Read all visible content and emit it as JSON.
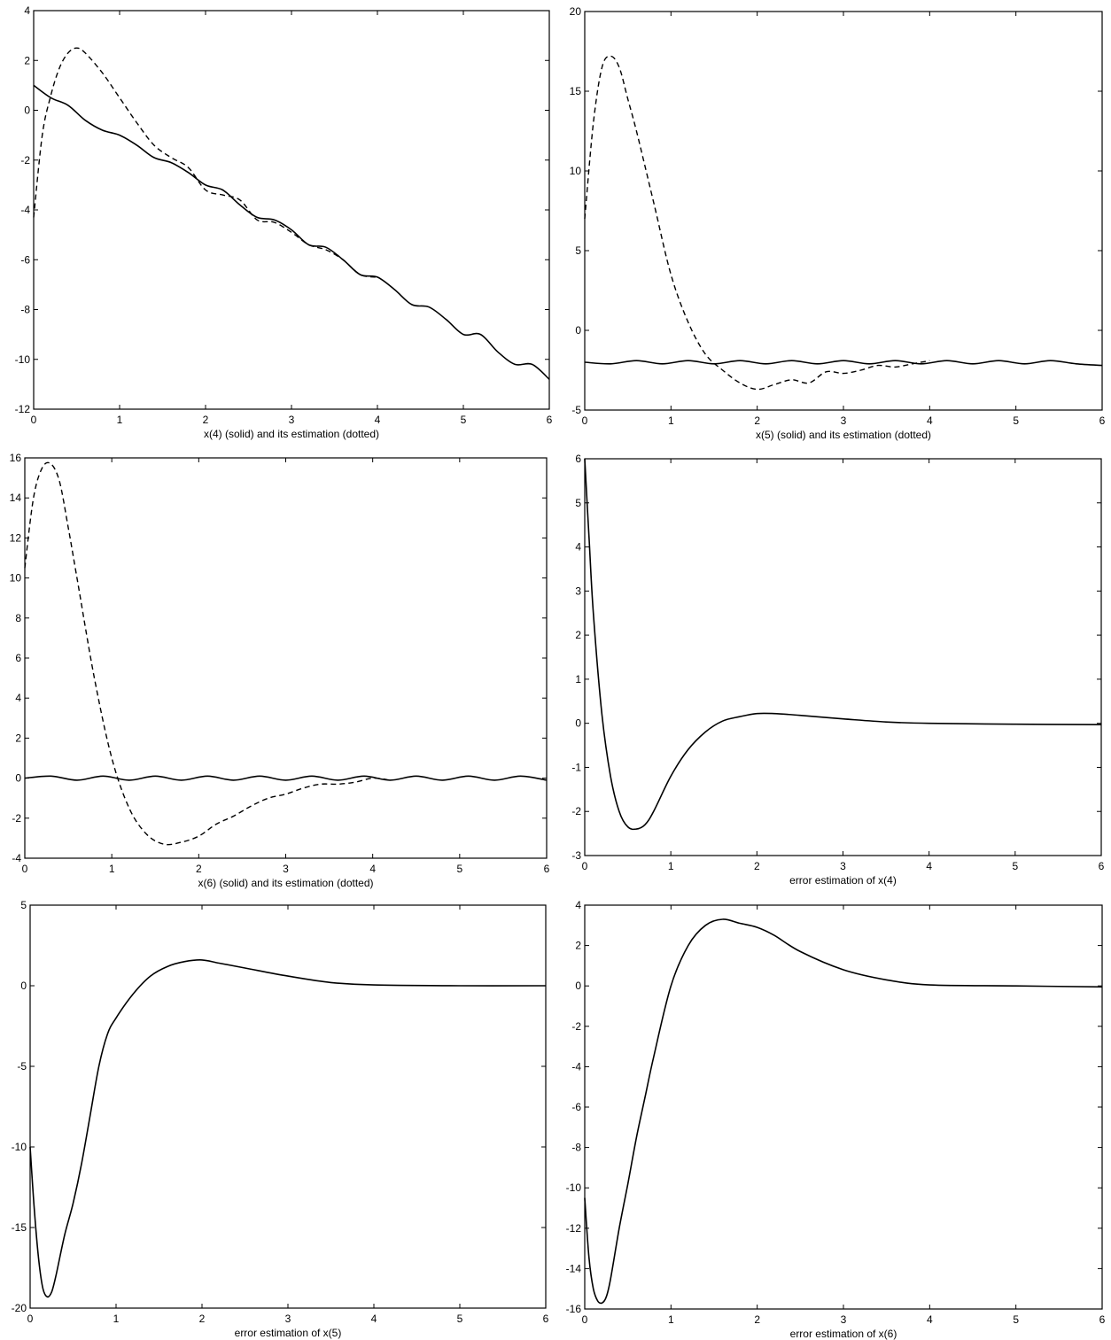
{
  "figure": {
    "background": "#ffffff",
    "ink": "#000000"
  },
  "chart_data": [
    {
      "type": "line",
      "xlabel": "x(4) (solid) and its estimation (dotted)",
      "xlim": [
        0,
        6
      ],
      "ylim": [
        -12,
        4
      ],
      "xticks": [
        0,
        1,
        2,
        3,
        4,
        5,
        6
      ],
      "yticks": [
        -12,
        -10,
        -8,
        -6,
        -4,
        -2,
        0,
        2,
        4
      ],
      "grid": false,
      "series": [
        {
          "style": "solid",
          "x": [
            0,
            0.2,
            0.4,
            0.6,
            0.8,
            1.0,
            1.2,
            1.4,
            1.6,
            1.8,
            2.0,
            2.2,
            2.4,
            2.6,
            2.8,
            3.0,
            3.2,
            3.4,
            3.6,
            3.8,
            4.0,
            4.2,
            4.4,
            4.6,
            4.8,
            5.0,
            5.2,
            5.4,
            5.6,
            5.8,
            6.0
          ],
          "y": [
            1.0,
            0.5,
            0.2,
            -0.4,
            -0.8,
            -1.0,
            -1.4,
            -1.9,
            -2.1,
            -2.5,
            -3.0,
            -3.2,
            -3.8,
            -4.3,
            -4.4,
            -4.8,
            -5.4,
            -5.5,
            -6.0,
            -6.6,
            -6.7,
            -7.2,
            -7.8,
            -7.9,
            -8.4,
            -9.0,
            -9.0,
            -9.7,
            -10.2,
            -10.2,
            -10.8
          ]
        },
        {
          "style": "dashed",
          "x": [
            0,
            0.1,
            0.2,
            0.3,
            0.4,
            0.5,
            0.6,
            0.8,
            1.0,
            1.2,
            1.4,
            1.6,
            1.8,
            2.0,
            2.2,
            2.4,
            2.6,
            2.8,
            3.0,
            3.2,
            3.4,
            3.6,
            3.8,
            4.0
          ],
          "y": [
            -4.3,
            -1.0,
            0.6,
            1.7,
            2.3,
            2.5,
            2.3,
            1.5,
            0.5,
            -0.5,
            -1.4,
            -1.9,
            -2.3,
            -3.2,
            -3.4,
            -3.6,
            -4.4,
            -4.5,
            -4.9,
            -5.4,
            -5.6,
            -6.0,
            -6.6,
            -6.7
          ]
        }
      ]
    },
    {
      "type": "line",
      "xlabel": "x(5) (solid) and its estimation (dotted)",
      "xlim": [
        0,
        6
      ],
      "ylim": [
        -5,
        20
      ],
      "xticks": [
        0,
        1,
        2,
        3,
        4,
        5,
        6
      ],
      "yticks": [
        -5,
        0,
        5,
        10,
        15,
        20
      ],
      "grid": false,
      "series": [
        {
          "style": "solid",
          "x": [
            0,
            0.3,
            0.6,
            0.9,
            1.2,
            1.5,
            1.8,
            2.1,
            2.4,
            2.7,
            3.0,
            3.3,
            3.6,
            3.9,
            4.2,
            4.5,
            4.8,
            5.1,
            5.4,
            5.7,
            6.0
          ],
          "y": [
            -2.0,
            -2.1,
            -1.9,
            -2.1,
            -1.9,
            -2.1,
            -1.9,
            -2.1,
            -1.9,
            -2.1,
            -1.9,
            -2.1,
            -1.9,
            -2.1,
            -1.9,
            -2.1,
            -1.9,
            -2.1,
            -1.9,
            -2.1,
            -2.2
          ]
        },
        {
          "style": "dashed",
          "x": [
            0,
            0.1,
            0.2,
            0.3,
            0.4,
            0.5,
            0.6,
            0.8,
            1.0,
            1.2,
            1.4,
            1.6,
            1.8,
            2.0,
            2.2,
            2.4,
            2.6,
            2.8,
            3.0,
            3.2,
            3.4,
            3.6,
            3.8,
            4.0
          ],
          "y": [
            7.0,
            13.0,
            16.5,
            17.2,
            16.5,
            14.5,
            12.5,
            8.0,
            3.5,
            0.5,
            -1.5,
            -2.5,
            -3.3,
            -3.7,
            -3.4,
            -3.1,
            -3.3,
            -2.6,
            -2.7,
            -2.5,
            -2.2,
            -2.3,
            -2.1,
            -1.9
          ]
        }
      ]
    },
    {
      "type": "line",
      "xlabel": "x(6) (solid) and its estimation (dotted)",
      "xlim": [
        0,
        6
      ],
      "ylim": [
        -4,
        16
      ],
      "xticks": [
        0,
        1,
        2,
        3,
        4,
        5,
        6
      ],
      "yticks": [
        -4,
        -2,
        0,
        2,
        4,
        6,
        8,
        10,
        12,
        14,
        16
      ],
      "grid": false,
      "series": [
        {
          "style": "solid",
          "x": [
            0,
            0.3,
            0.6,
            0.9,
            1.2,
            1.5,
            1.8,
            2.1,
            2.4,
            2.7,
            3.0,
            3.3,
            3.6,
            3.9,
            4.2,
            4.5,
            4.8,
            5.1,
            5.4,
            5.7,
            6.0
          ],
          "y": [
            0.0,
            0.1,
            -0.1,
            0.1,
            -0.1,
            0.1,
            -0.1,
            0.1,
            -0.1,
            0.1,
            -0.1,
            0.1,
            -0.1,
            0.1,
            -0.1,
            0.1,
            -0.1,
            0.1,
            -0.1,
            0.1,
            -0.1
          ]
        },
        {
          "style": "dashed",
          "x": [
            0,
            0.1,
            0.2,
            0.3,
            0.4,
            0.5,
            0.6,
            0.8,
            1.0,
            1.2,
            1.4,
            1.6,
            1.8,
            2.0,
            2.2,
            2.4,
            2.6,
            2.8,
            3.0,
            3.2,
            3.4,
            3.6,
            3.8,
            4.0,
            4.2
          ],
          "y": [
            10.5,
            14.0,
            15.5,
            15.7,
            14.8,
            12.5,
            10.0,
            5.0,
            1.0,
            -1.5,
            -2.8,
            -3.3,
            -3.2,
            -2.9,
            -2.3,
            -1.9,
            -1.4,
            -1.0,
            -0.8,
            -0.5,
            -0.3,
            -0.3,
            -0.2,
            0.0,
            -0.1
          ]
        }
      ]
    },
    {
      "type": "line",
      "xlabel": "error estimation of x(4)",
      "xlim": [
        0,
        6
      ],
      "ylim": [
        -3,
        6
      ],
      "xticks": [
        0,
        1,
        2,
        3,
        4,
        5,
        6
      ],
      "yticks": [
        -3,
        -2,
        -1,
        0,
        1,
        2,
        3,
        4,
        5,
        6
      ],
      "grid": false,
      "series": [
        {
          "style": "solid",
          "x": [
            0,
            0.05,
            0.1,
            0.2,
            0.3,
            0.4,
            0.5,
            0.6,
            0.7,
            0.8,
            1.0,
            1.2,
            1.4,
            1.6,
            1.8,
            2.0,
            2.2,
            2.5,
            3.0,
            3.5,
            4.0,
            5.0,
            6.0
          ],
          "y": [
            6.0,
            4.2,
            2.5,
            0.2,
            -1.2,
            -2.0,
            -2.35,
            -2.4,
            -2.3,
            -2.0,
            -1.2,
            -0.6,
            -0.2,
            0.05,
            0.15,
            0.22,
            0.22,
            0.18,
            0.1,
            0.03,
            0.0,
            -0.02,
            -0.03
          ]
        }
      ]
    },
    {
      "type": "line",
      "xlabel": "error estimation of x(5)",
      "xlim": [
        0,
        6
      ],
      "ylim": [
        -20,
        5
      ],
      "xticks": [
        0,
        1,
        2,
        3,
        4,
        5,
        6
      ],
      "yticks": [
        -20,
        -15,
        -10,
        -5,
        0,
        5
      ],
      "grid": false,
      "series": [
        {
          "style": "solid",
          "x": [
            0,
            0.05,
            0.1,
            0.15,
            0.2,
            0.25,
            0.3,
            0.4,
            0.5,
            0.6,
            0.7,
            0.8,
            0.9,
            1.0,
            1.2,
            1.4,
            1.6,
            1.8,
            2.0,
            2.2,
            2.5,
            3.0,
            3.5,
            4.0,
            5.0,
            6.0
          ],
          "y": [
            -10.0,
            -14.0,
            -17.0,
            -18.8,
            -19.3,
            -19.0,
            -18.0,
            -15.5,
            -13.5,
            -11.0,
            -8.0,
            -5.0,
            -3.0,
            -2.0,
            -0.5,
            0.6,
            1.2,
            1.5,
            1.6,
            1.4,
            1.1,
            0.6,
            0.2,
            0.05,
            0.0,
            0.0
          ]
        }
      ]
    },
    {
      "type": "line",
      "xlabel": "error estimation of x(6)",
      "xlim": [
        0,
        6
      ],
      "ylim": [
        -16,
        4
      ],
      "xticks": [
        0,
        1,
        2,
        3,
        4,
        5,
        6
      ],
      "yticks": [
        -16,
        -14,
        -12,
        -10,
        -8,
        -6,
        -4,
        -2,
        0,
        2,
        4
      ],
      "grid": false,
      "series": [
        {
          "style": "solid",
          "x": [
            0,
            0.05,
            0.1,
            0.15,
            0.2,
            0.25,
            0.3,
            0.4,
            0.5,
            0.6,
            0.7,
            0.8,
            1.0,
            1.2,
            1.4,
            1.6,
            1.8,
            2.0,
            2.2,
            2.5,
            3.0,
            3.5,
            4.0,
            5.0,
            6.0
          ],
          "y": [
            -10.5,
            -13.5,
            -15.0,
            -15.6,
            -15.7,
            -15.4,
            -14.5,
            -12.0,
            -9.8,
            -7.5,
            -5.5,
            -3.5,
            0.0,
            2.0,
            3.0,
            3.3,
            3.1,
            2.9,
            2.5,
            1.7,
            0.8,
            0.3,
            0.05,
            0.0,
            -0.05
          ]
        }
      ]
    }
  ]
}
